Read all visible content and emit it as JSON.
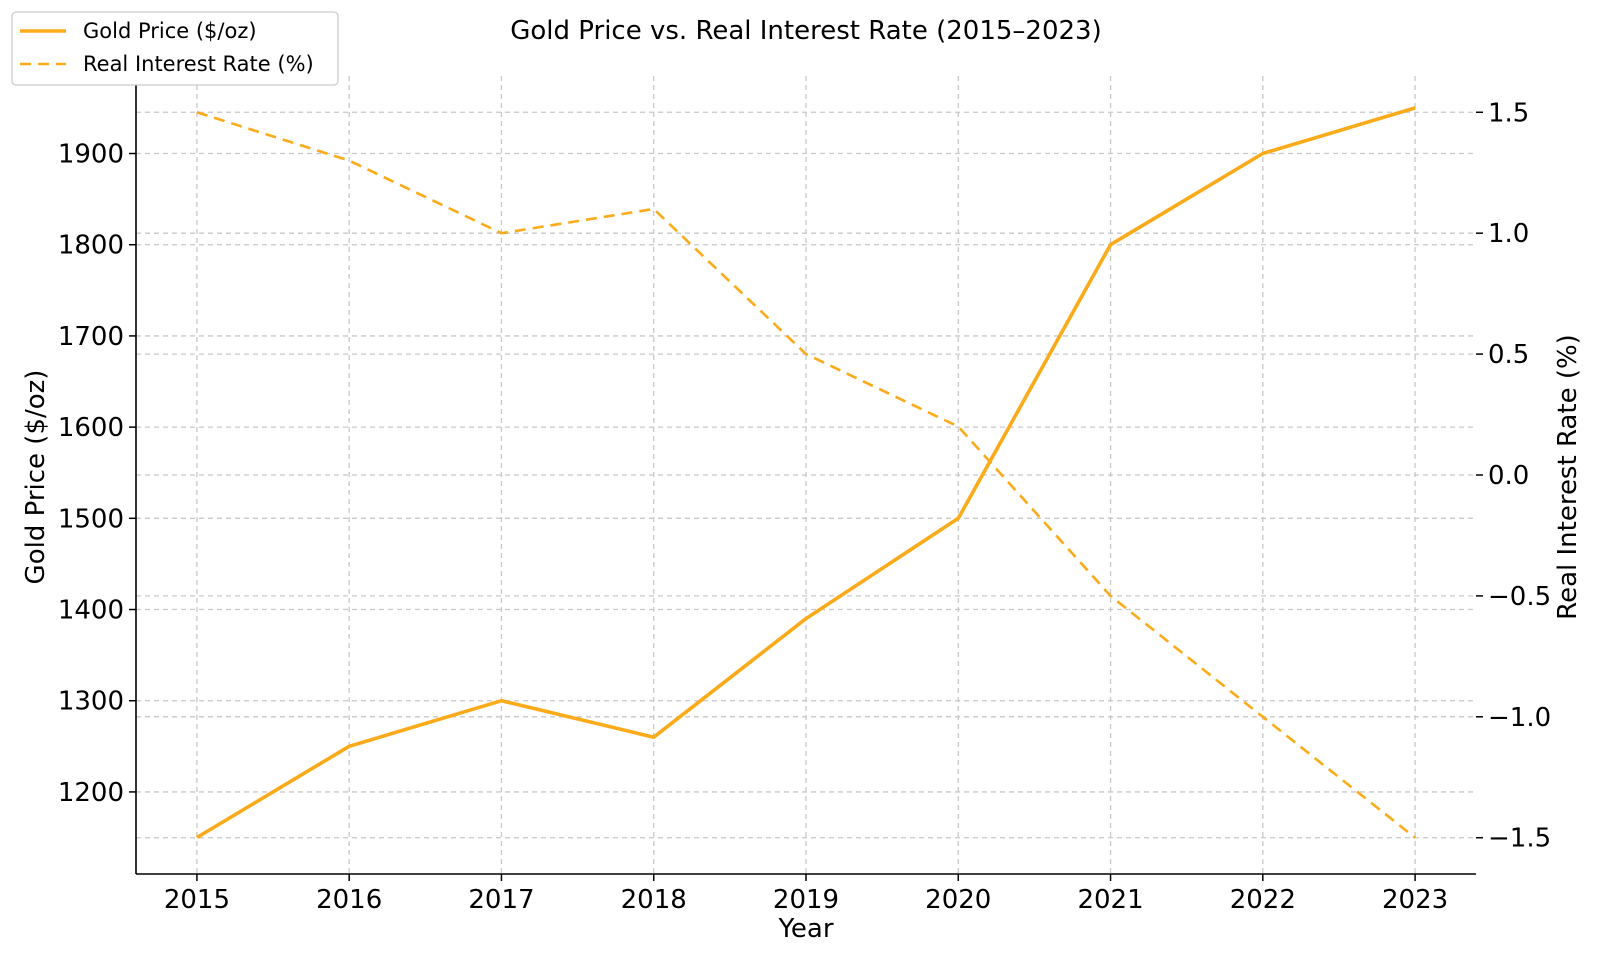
{
  "chart_data": {
    "type": "line",
    "title": "Gold Price vs. Real Interest Rate (2015–2023)",
    "xlabel": "Year",
    "ylabel_left": "Gold Price ($/oz)",
    "ylabel_right": "Real Interest Rate (%)",
    "x": [
      2015,
      2016,
      2017,
      2018,
      2019,
      2020,
      2021,
      2022,
      2023
    ],
    "xlim": [
      2014.6,
      2023.4
    ],
    "ylim_left": [
      1110,
      1985
    ],
    "ylim_right": [
      -1.65,
      1.65
    ],
    "yticks_left": [
      "1200",
      "1300",
      "1400",
      "1500",
      "1600",
      "1700",
      "1800",
      "1900"
    ],
    "yticks_left_values": [
      1200,
      1300,
      1400,
      1500,
      1600,
      1700,
      1800,
      1900
    ],
    "yticks_right": [
      "−1.5",
      "−1.0",
      "−0.5",
      "0.0",
      "0.5",
      "1.0",
      "1.5"
    ],
    "yticks_right_values": [
      -1.5,
      -1.0,
      -0.5,
      0.0,
      0.5,
      1.0,
      1.5
    ],
    "series": [
      {
        "name": "Gold Price ($/oz)",
        "axis": "left",
        "style": "solid",
        "color": "#FBAA19",
        "values": [
          1150,
          1250,
          1300,
          1260,
          1390,
          1500,
          1800,
          1900,
          1950
        ]
      },
      {
        "name": "Real Interest Rate (%)",
        "axis": "right",
        "style": "dashed",
        "color": "#FBAA19",
        "values": [
          1.5,
          1.3,
          1.0,
          1.1,
          0.5,
          0.2,
          -0.5,
          -1.0,
          -1.5
        ]
      }
    ],
    "grid": true,
    "legend_position": "top-left"
  }
}
